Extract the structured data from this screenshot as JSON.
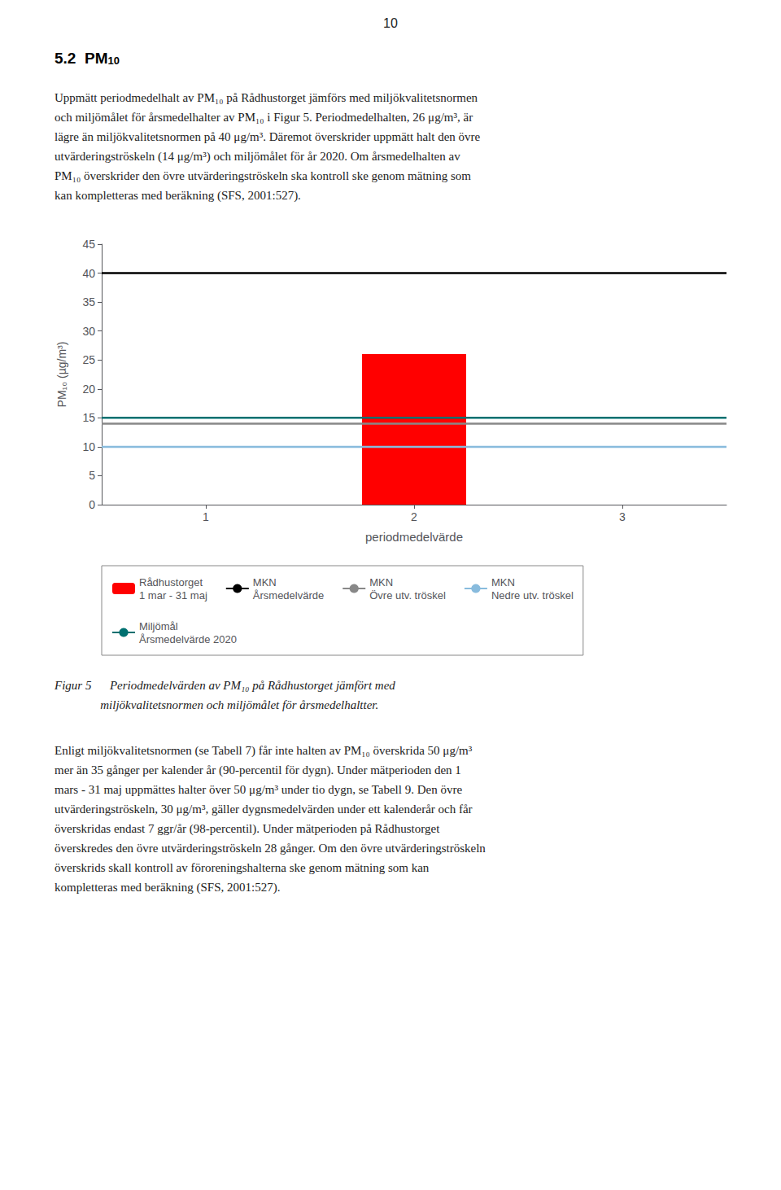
{
  "chart_data": {
    "type": "bar",
    "x": [
      2
    ],
    "xlabel": "periodmedelvärde",
    "ylabel": "PM₁₀ (µg/m³)",
    "xlim": [
      0.5,
      3.5
    ],
    "xticks": [
      1,
      2,
      3
    ],
    "ylim": [
      0,
      45
    ],
    "yticks": [
      0,
      5,
      10,
      15,
      20,
      25,
      30,
      35,
      40,
      45
    ],
    "grid": false,
    "legend": "bottom",
    "series": [
      {
        "name": "Rådhustorget\n1 mar - 31 maj",
        "type": "bar",
        "color": "#FF0000",
        "values": [
          26
        ]
      },
      {
        "name": "MKN\nÅrsmedelvärde",
        "type": "hline",
        "color": "#000000",
        "values": [
          40
        ]
      },
      {
        "name": "MKN\nÖvre utv. tröskel",
        "type": "hline",
        "color": "#888888",
        "values": [
          14
        ]
      },
      {
        "name": "MKN\nNedre utv. tröskel",
        "type": "hline",
        "color": "#88BBDD",
        "values": [
          10
        ]
      },
      {
        "name": "Miljömål\nÅrsmedelvärde 2020",
        "type": "hline",
        "color": "#007070",
        "values": [
          15
        ]
      }
    ]
  },
  "page_text": {
    "page_number": "10",
    "heading": {
      "text": "5.2  PM",
      "subscript": "10"
    },
    "body1": "Uppmätt periodmedelhalt av PM₁₀ på Rådhustorget jämförs med miljökvalitetsnormen\noch miljömålet för årsmedelhalter av PM₁₀ i Figur 5. Periodmedelhalten, 26 μg/m³, är\nlägre än miljökvalitetsnormen på 40 μg/m³. Däremot överskrider uppmätt halt den övre\nutvärderingströskeln (14 μg/m³) och miljömålet för år 2020. Om årsmedelhalten av\nPM₁₀ överskrider den övre utvärderingströskeln ska kontroll ske genom mätning som\nkan kompletteras med beräkning (SFS, 2001:527).",
    "caption": "Figur 5      Periodmedelvärden av PM₁₀ på Rådhustorget jämfört med\n               miljökvalitetsnormen och miljömålet för årsmedelhaltter.",
    "body2": "Enligt miljökvalitetsnormen (se Tabell 7) får inte halten av PM₁₀ överskrida 50 μg/m³\nmer än 35 gånger per kalender år (90-percentil för dygn). Under mätperioden den 1\nmars - 31 maj uppmättes halter över 50 μg/m³ under tio dygn, se Tabell 9. Den övre\nutvärderingströskeln, 30 μg/m³, gäller dygnsmedelvärden under ett kalenderår och får\növerskridas endast 7 ggr/år (98-percentil). Under mätperioden på Rådhustorget\növerskredes den övre utvärderingströskeln 28 gånger. Om den övre utvärderingströskeln\növerskrids skall kontroll av föroreningshalterna ske genom mätning som kan\nkompletteras med beräkning (SFS, 2001:527)."
  }
}
